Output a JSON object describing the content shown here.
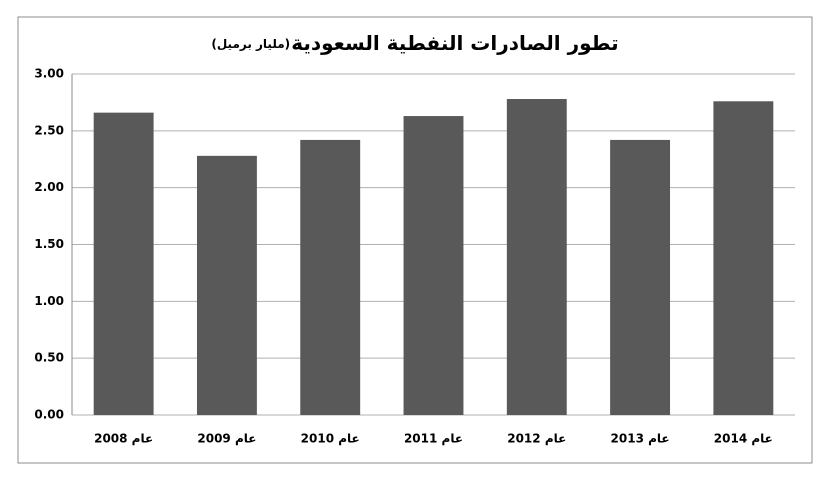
{
  "chart_data": {
    "type": "bar",
    "title": "تطور الصادرات النفطية السعودية",
    "subtitle": "(مليار برميل)",
    "categories": [
      "عام 2008",
      "عام 2009",
      "عام 2010",
      "عام 2011",
      "عام 2012",
      "عام 2013",
      "عام 2014"
    ],
    "values": [
      2.66,
      2.28,
      2.42,
      2.63,
      2.78,
      2.42,
      2.76
    ],
    "color": "#595959",
    "ylim": [
      0,
      3
    ],
    "yticks": [
      {
        "value": 0,
        "label": "0.00"
      },
      {
        "value": 0.5,
        "label": "0.50"
      },
      {
        "value": 1,
        "label": "1.00"
      },
      {
        "value": 1.5,
        "label": "1.50"
      },
      {
        "value": 2,
        "label": "2.00"
      },
      {
        "value": 2.5,
        "label": "2.50"
      },
      {
        "value": 3,
        "label": "3.00"
      }
    ],
    "grid": true
  }
}
